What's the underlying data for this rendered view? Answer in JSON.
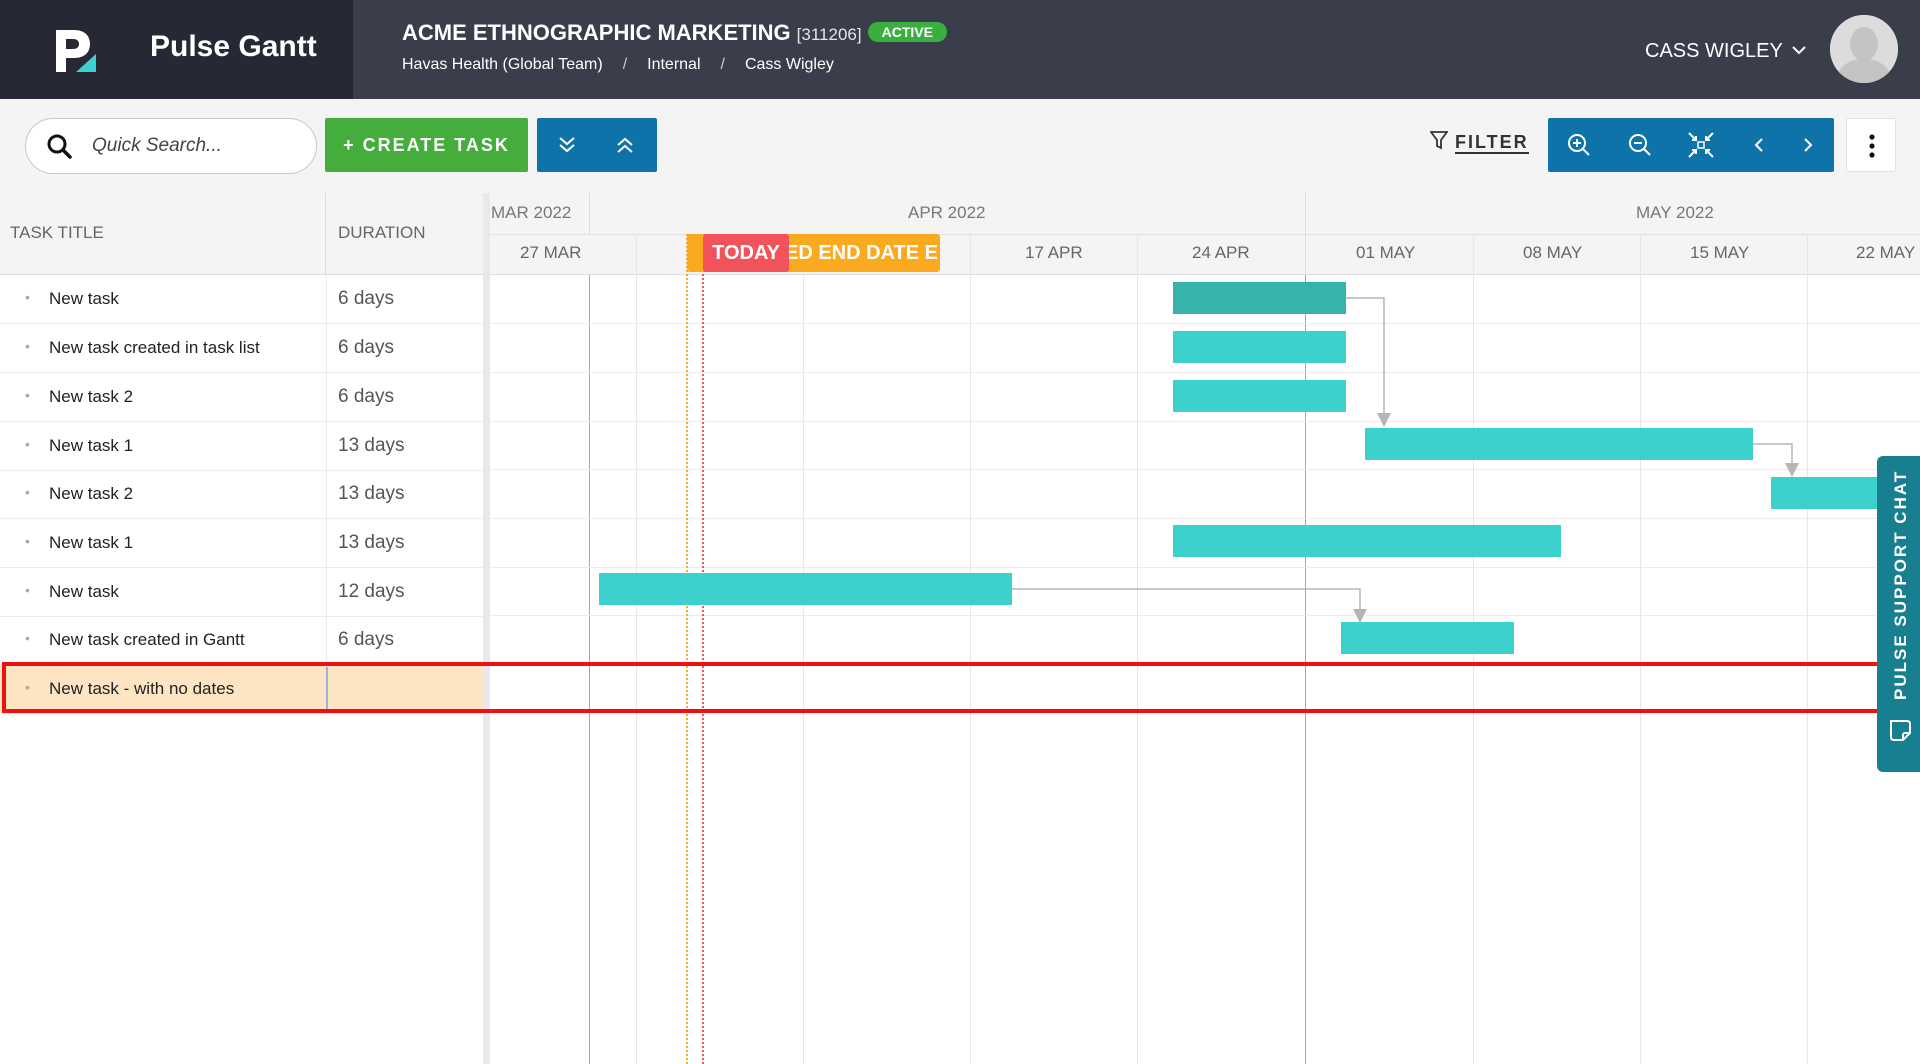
{
  "header": {
    "app_name": "Pulse Gantt",
    "project_title": "ACME ETHNOGRAPHIC MARKETING",
    "project_code": "[311206]",
    "status": "ACTIVE",
    "breadcrumb": [
      "Havas Health (Global Team)",
      "Internal",
      "Cass Wigley"
    ],
    "breadcrumb_separator": "/",
    "user_name": "CASS WIGLEY"
  },
  "toolbar": {
    "search_placeholder": "Quick Search...",
    "create_task_label": "+ CREATE TASK",
    "filter_label": "FILTER"
  },
  "grid": {
    "col_task_title": "TASK TITLE",
    "col_duration": "DURATION",
    "rows": [
      {
        "title": "New task",
        "duration": "6 days"
      },
      {
        "title": "New task created in task list",
        "duration": "6 days"
      },
      {
        "title": "New task 2",
        "duration": "6 days"
      },
      {
        "title": "New task 1",
        "duration": "13 days"
      },
      {
        "title": "New task 2",
        "duration": "13 days"
      },
      {
        "title": "New task 1",
        "duration": "13 days"
      },
      {
        "title": "New task",
        "duration": "12 days"
      },
      {
        "title": "New task created in Gantt",
        "duration": "6 days"
      },
      {
        "title": "New task - with no dates",
        "duration": ""
      }
    ]
  },
  "timeline": {
    "months": [
      "MAR 2022",
      "APR 2022",
      "MAY 2022"
    ],
    "weeks": [
      "27 MAR",
      "17 APR",
      "24 APR",
      "01 MAY",
      "08 MAY",
      "15 MAY",
      "22 MAY"
    ],
    "today_label": "TODAY",
    "end_date_label": "ED END DATE  E"
  },
  "support": {
    "label": "PULSE SUPPORT CHAT"
  },
  "colors": {
    "header_bg": "#3a3d4a",
    "create_task": "#45ad3b",
    "toolbar_blue": "#0e73a8",
    "bar": "#3dd1ce",
    "bar_selected": "#36b3ad",
    "today": "#f2535a",
    "end_date": "#fbaa1f",
    "highlight": "#ee1111"
  }
}
